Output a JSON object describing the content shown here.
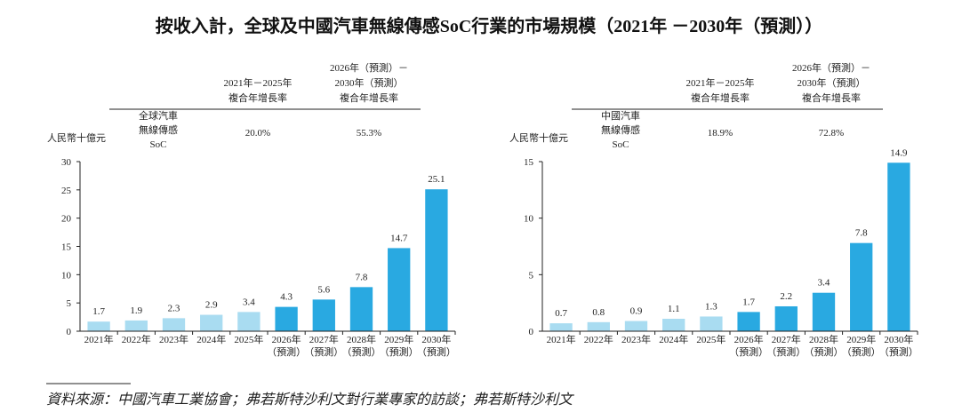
{
  "title": "按收入計，全球及中國汽車無線傳感SoC行業的市場規模（2021年 －2030年（預測））",
  "source": "資料來源：中國汽車工業協會；弗若斯特沙利文對行業專家的訪談；弗若斯特沙利文",
  "chart_data": [
    {
      "type": "bar",
      "unit_label": "人民幣十億元",
      "cagr_table": {
        "columns": [
          "2021年－2025年\n複合年增長率",
          "2026年（預測）－\n2030年（預測）\n複合年增長率"
        ],
        "row_label": "全球汽車\n無線傳感\nSoC",
        "cells": [
          "20.0%",
          "55.3%"
        ]
      },
      "categories": [
        "2021年",
        "2022年",
        "2023年",
        "2024年",
        "2025年",
        "2026年\n（預測）",
        "2027年\n（預測）",
        "2028年\n（預測）",
        "2029年\n（預測）",
        "2030年\n（預測）"
      ],
      "values": [
        1.7,
        1.9,
        2.3,
        2.9,
        3.4,
        4.3,
        5.6,
        7.8,
        14.7,
        25.1
      ],
      "colors": [
        "#a9dcf1",
        "#a9dcf1",
        "#a9dcf1",
        "#a9dcf1",
        "#a9dcf1",
        "#29a9e1",
        "#29a9e1",
        "#29a9e1",
        "#29a9e1",
        "#29a9e1"
      ],
      "ylim": [
        0,
        30
      ],
      "yticks": [
        0,
        5,
        10,
        15,
        20,
        25,
        30
      ]
    },
    {
      "type": "bar",
      "unit_label": "人民幣十億元",
      "cagr_table": {
        "columns": [
          "2021年－2025年\n複合年增長率",
          "2026年（預測）－\n2030年（預測）\n複合年增長率"
        ],
        "row_label": "中國汽車\n無線傳感\nSoC",
        "cells": [
          "18.9%",
          "72.8%"
        ]
      },
      "categories": [
        "2021年",
        "2022年",
        "2023年",
        "2024年",
        "2025年",
        "2026年\n（預測）",
        "2027年\n（預測）",
        "2028年\n（預測）",
        "2029年\n（預測）",
        "2030年\n（預測）"
      ],
      "values": [
        0.7,
        0.8,
        0.9,
        1.1,
        1.3,
        1.7,
        2.2,
        3.4,
        7.8,
        14.9
      ],
      "colors": [
        "#a9dcf1",
        "#a9dcf1",
        "#a9dcf1",
        "#a9dcf1",
        "#a9dcf1",
        "#29a9e1",
        "#29a9e1",
        "#29a9e1",
        "#29a9e1",
        "#29a9e1"
      ],
      "ylim": [
        0,
        15
      ],
      "yticks": [
        0,
        5,
        10,
        15
      ]
    }
  ]
}
